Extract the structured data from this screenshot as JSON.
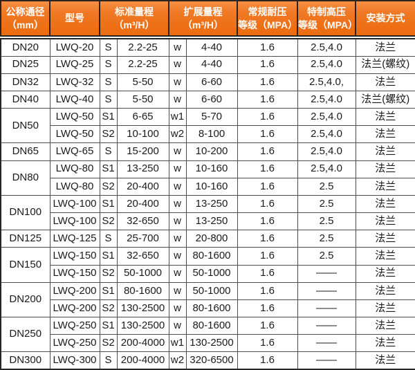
{
  "colors": {
    "header_bg": "#ee6f15",
    "header_bg_top": "#f89045",
    "header_text": "#ffffff",
    "body_text": "#1a1a1a",
    "border_dark": "#262626",
    "border_light": "#4d4d4d",
    "body_bg": "#ffffff"
  },
  "chart_data": {
    "type": "table",
    "columns": [
      {
        "key": "dn",
        "label": "公称通径\n（mm）"
      },
      {
        "key": "model",
        "label": "型号"
      },
      {
        "key": "std",
        "label": "标准量程\n（m³/H）",
        "colspan": 2
      },
      {
        "key": "ext",
        "label": "扩展量程\n（m³/H）",
        "colspan": 2
      },
      {
        "key": "press",
        "label": "常规耐压\n等级（MPA）"
      },
      {
        "key": "high",
        "label": "特制高压\n等级（MPA）"
      },
      {
        "key": "install",
        "label": "安装方式"
      }
    ],
    "rows": [
      {
        "dn": "DN20",
        "model": "LWQ-20",
        "s": "S",
        "std": "2.2-25",
        "w": "w",
        "ext": "4-40",
        "press": "1.6",
        "high": "2.5,4.0",
        "install": "法兰"
      },
      {
        "dn": "DN25",
        "model": "LWQ-25",
        "s": "S",
        "std": "2.2-25",
        "w": "w",
        "ext": "4-40",
        "press": "1.6",
        "high": "2.5,4.0",
        "install": "法兰(螺纹)"
      },
      {
        "dn": "DN32",
        "model": "LWQ-32",
        "s": "S",
        "std": "5-50",
        "w": "w",
        "ext": "6-60",
        "press": "1.6",
        "high": "2.5,4.0,",
        "install": "法兰"
      },
      {
        "dn": "DN40",
        "model": "LWQ-40",
        "s": "S",
        "std": "5-50",
        "w": "w",
        "ext": "6-60",
        "press": "1.6",
        "high": "2.5,4.0",
        "install": "法兰(螺纹)"
      },
      {
        "dn": "DN50",
        "dn_rowspan": 2,
        "model": "LWQ-50",
        "s": "S1",
        "std": "6-65",
        "w": "w1",
        "ext": "5-70",
        "press": "1.6",
        "high": "2.5,4.0",
        "install": "法兰"
      },
      {
        "model": "LWQ-50",
        "s": "S2",
        "std": "10-100",
        "w": "w2",
        "ext": "8-100",
        "press": "1.6",
        "high": "2.5,4.0",
        "install": "法兰"
      },
      {
        "dn": "DN65",
        "model": "LWQ-65",
        "s": "S",
        "std": "15-200",
        "w": "w",
        "ext": "10-200",
        "press": "1.6",
        "high": "2.5,4.0",
        "install": "法兰"
      },
      {
        "dn": "DN80",
        "dn_rowspan": 2,
        "model": "LWQ-80",
        "s": "S1",
        "std": "13-250",
        "w": "w",
        "ext": "10-160",
        "press": "1.6",
        "high": "2.5,4.0",
        "install": "法兰"
      },
      {
        "model": "LWQ-80",
        "s": "S2",
        "std": "20-400",
        "w": "w",
        "ext": "10-160",
        "press": "1.6",
        "high": "2.5",
        "install": "法兰"
      },
      {
        "dn": "DN100",
        "dn_rowspan": 2,
        "model": "LWQ-100",
        "s": "S1",
        "std": "20-400",
        "w": "w",
        "ext": "13-250",
        "press": "1.6",
        "high": "2.5",
        "install": "法兰"
      },
      {
        "model": "LWQ-100",
        "s": "S2",
        "std": "32-650",
        "w": "w",
        "ext": "13-250",
        "press": "1.6",
        "high": "2.5",
        "install": "法兰"
      },
      {
        "dn": "DN125",
        "model": "LWQ-125",
        "s": "S",
        "std": "25-700",
        "w": "w",
        "ext": "20-800",
        "press": "1.6",
        "high": "2.5",
        "install": "法兰"
      },
      {
        "dn": "DN150",
        "dn_rowspan": 2,
        "model": "LWQ-150",
        "s": "S1",
        "std": "32-650",
        "w": "w",
        "ext": "80-1600",
        "press": "1.6",
        "high": "2.5",
        "install": "法兰"
      },
      {
        "model": "LWQ-150",
        "s": "S2",
        "std": "50-1000",
        "w": "w",
        "ext": "50-1000",
        "press": "1.6",
        "high": "——",
        "install": "法兰"
      },
      {
        "dn": "DN200",
        "dn_rowspan": 2,
        "model": "LWQ-200",
        "s": "S1",
        "std": "80-1600",
        "w": "w",
        "ext": "50-1000",
        "press": "1.6",
        "high": "——",
        "install": "法兰"
      },
      {
        "model": "LWQ-200",
        "s": "S2",
        "std": "130-2500",
        "w": "w",
        "ext": "80-1600",
        "press": "1.6",
        "high": "——",
        "install": "法兰"
      },
      {
        "dn": "DN250",
        "dn_rowspan": 2,
        "model": "LWQ-250",
        "s": "S1",
        "std": "130-2500",
        "w": "w",
        "ext": "80-1600",
        "press": "1.6",
        "high": "——",
        "install": "法兰"
      },
      {
        "model": "LWQ-250",
        "s": "S2",
        "std": "200-4000",
        "w": "w1",
        "ext": "130-2500",
        "press": "1.6",
        "high": "——",
        "install": "法兰"
      },
      {
        "dn": "DN300",
        "model": "LWQ-300",
        "s": "S",
        "std": "200-4000",
        "w": "w2",
        "ext": "320-6500",
        "press": "1.6",
        "high": "——",
        "install": "法兰"
      }
    ]
  }
}
